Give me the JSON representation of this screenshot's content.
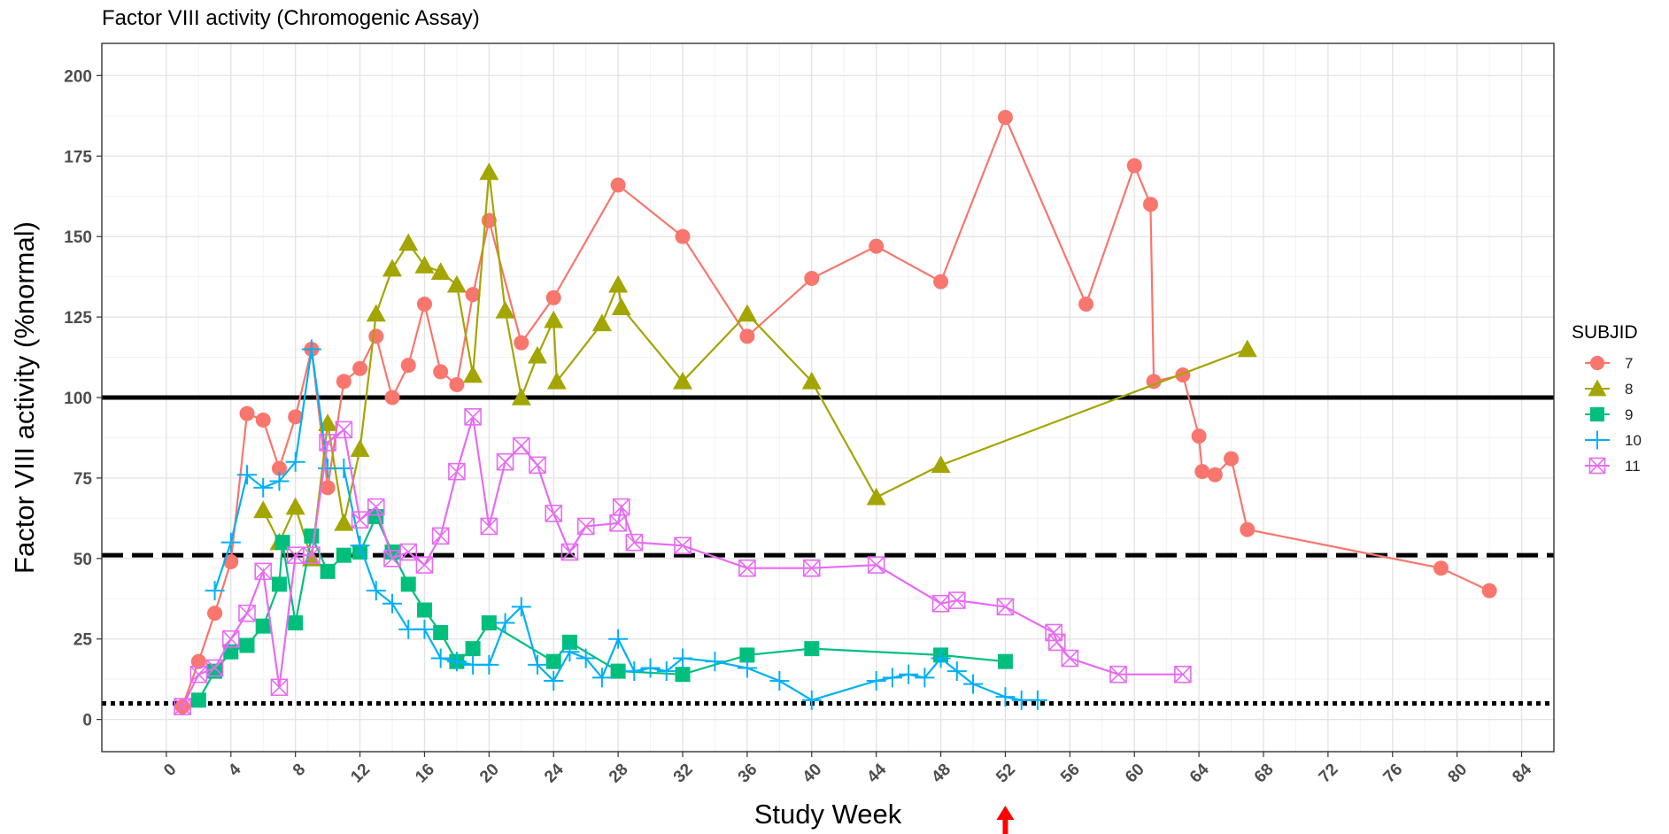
{
  "chart_data": {
    "type": "line",
    "title": "Factor VIII activity (Chromogenic Assay)",
    "xlabel": "Study Week",
    "ylabel": "Factor VIII activity (%normal)",
    "xlim": [
      -4,
      86
    ],
    "ylim": [
      -10,
      210
    ],
    "x_ticks": [
      0,
      4,
      8,
      12,
      16,
      20,
      24,
      28,
      32,
      36,
      40,
      44,
      48,
      52,
      56,
      60,
      64,
      68,
      72,
      76,
      80,
      84
    ],
    "y_ticks": [
      0,
      25,
      50,
      75,
      100,
      125,
      150,
      175,
      200
    ],
    "grid": true,
    "legend_title": "SUBJID",
    "legend_position": "right",
    "reference_lines": [
      {
        "y": 100,
        "style": "solid"
      },
      {
        "y": 51,
        "style": "dashed"
      },
      {
        "y": 5,
        "style": "dotted"
      }
    ],
    "marker_arrow_x": 52,
    "marker_arrow_color": "#ff0000",
    "series": [
      {
        "name": "7",
        "color": "#f8766d",
        "marker": "circle",
        "x": [
          1,
          2,
          3,
          4,
          5,
          6,
          7,
          8,
          9,
          10,
          11,
          12,
          13,
          14,
          15,
          16,
          17,
          18,
          19,
          20,
          22,
          24,
          28,
          32,
          36,
          40,
          44,
          48,
          52,
          57,
          60,
          61,
          61.2,
          63,
          64,
          64.2,
          65,
          66,
          67,
          79,
          82
        ],
        "y": [
          4,
          18,
          33,
          49,
          95,
          93,
          78,
          94,
          115,
          72,
          105,
          109,
          119,
          100,
          110,
          129,
          108,
          104,
          132,
          155,
          117,
          131,
          166,
          150,
          119,
          137,
          147,
          136,
          187,
          129,
          172,
          160,
          105,
          107,
          88,
          77,
          76,
          81,
          59,
          47,
          40
        ]
      },
      {
        "name": "8",
        "color": "#a3a500",
        "marker": "triangle",
        "x": [
          6,
          7,
          8,
          9,
          10,
          11,
          12,
          13,
          14,
          15,
          16,
          17,
          18,
          19,
          20,
          21,
          22,
          23,
          24,
          24.2,
          27,
          28,
          28.2,
          32,
          36,
          40,
          44,
          48,
          67
        ],
        "y": [
          65,
          55,
          66,
          50,
          92,
          61,
          84,
          126,
          140,
          148,
          141,
          139,
          135,
          107,
          170,
          127,
          100,
          113,
          124,
          105,
          123,
          135,
          128,
          105,
          126,
          105,
          69,
          79,
          115
        ]
      },
      {
        "name": "9",
        "color": "#00bf7d",
        "marker": "square",
        "x": [
          2,
          3,
          4,
          5,
          6,
          7,
          7.2,
          8,
          9,
          10,
          11,
          12,
          13,
          14,
          15,
          16,
          17,
          18,
          19,
          20,
          24,
          25,
          28,
          32,
          36,
          40,
          48,
          52
        ],
        "y": [
          6,
          15,
          21,
          23,
          29,
          42,
          55,
          30,
          57,
          46,
          51,
          52,
          63,
          52,
          42,
          34,
          27,
          18,
          22,
          30,
          18,
          24,
          15,
          14,
          20,
          22,
          20,
          18
        ]
      },
      {
        "name": "10",
        "color": "#00b0f6",
        "marker": "plus",
        "x": [
          3,
          4,
          5,
          6,
          7,
          8,
          9,
          10,
          11,
          12,
          13,
          14,
          15,
          16,
          17,
          18,
          19,
          20,
          21,
          22,
          23,
          24,
          25,
          26,
          27,
          28,
          29,
          30,
          31,
          32,
          34,
          36,
          38,
          40,
          44,
          45,
          46,
          47,
          48,
          49,
          50,
          52,
          53,
          54
        ],
        "y": [
          40,
          55,
          76,
          72,
          74,
          80,
          115,
          78,
          78,
          54,
          40,
          36,
          28,
          28,
          19,
          18,
          17,
          17,
          30,
          35,
          17,
          12,
          21,
          19,
          13,
          25,
          15,
          16,
          15,
          19,
          18,
          16,
          12,
          6,
          12,
          13,
          14,
          13,
          19,
          15,
          11,
          7,
          6,
          6
        ]
      },
      {
        "name": "11",
        "color": "#e76bf3",
        "marker": "boxcross",
        "x": [
          1,
          2,
          3,
          4,
          5,
          6,
          7,
          8,
          9,
          10,
          11,
          12,
          13,
          14,
          15,
          16,
          17,
          18,
          19,
          20,
          21,
          22,
          23,
          24,
          25,
          26,
          28,
          28.2,
          29,
          32,
          36,
          40,
          44,
          48,
          49,
          52,
          55,
          55.2,
          56,
          59,
          63
        ],
        "y": [
          4,
          14,
          16,
          25,
          33,
          46,
          10,
          51,
          51,
          86,
          90,
          62,
          66,
          50,
          52,
          48,
          57,
          77,
          94,
          60,
          80,
          85,
          79,
          64,
          52,
          60,
          61,
          66,
          55,
          54,
          47,
          47,
          48,
          36,
          37,
          35,
          27,
          24,
          19,
          14,
          14
        ]
      }
    ]
  }
}
